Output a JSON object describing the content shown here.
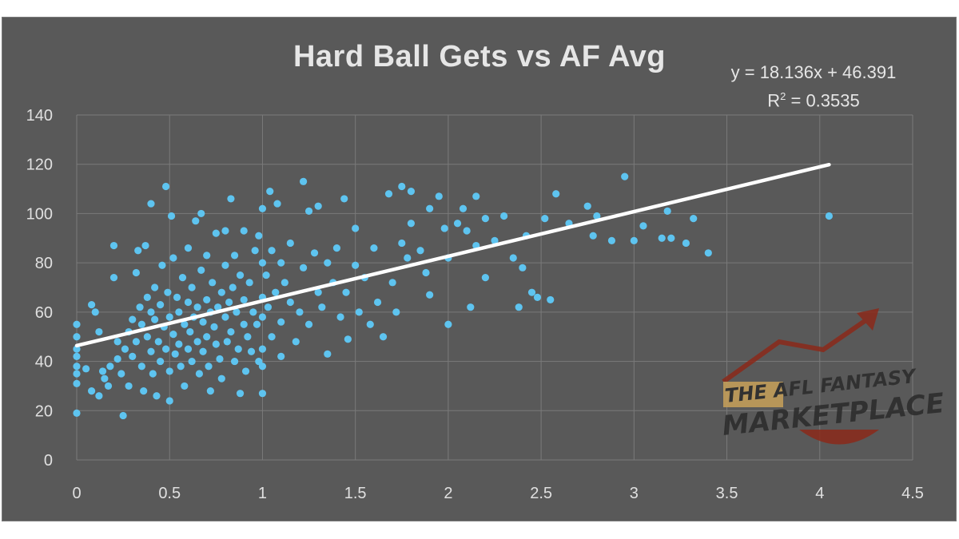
{
  "chart_data": {
    "type": "scatter",
    "title": "Hard Ball Gets vs AF Avg",
    "xlabel": "",
    "ylabel": "",
    "xlim": [
      0,
      4.5
    ],
    "ylim": [
      0,
      140
    ],
    "x_ticks": [
      "0",
      "0.5",
      "1",
      "1.5",
      "2",
      "2.5",
      "3",
      "3.5",
      "4",
      "4.5"
    ],
    "y_ticks": [
      "0",
      "20",
      "40",
      "60",
      "80",
      "100",
      "120",
      "140"
    ],
    "grid": true,
    "point_color": "#5ec4f0",
    "trendline": {
      "equation_label": "y = 18.136x + 46.391",
      "r2_label_prefix": "R",
      "r2_label_exp": "2",
      "r2_label_value": " = 0.3535",
      "slope": 18.136,
      "intercept": 46.391,
      "x_range": [
        0,
        4.05
      ],
      "color": "#ffffff"
    },
    "points": [
      [
        0,
        55
      ],
      [
        0,
        50
      ],
      [
        0,
        45
      ],
      [
        0,
        42
      ],
      [
        0,
        38
      ],
      [
        0,
        35
      ],
      [
        0,
        31
      ],
      [
        0,
        19
      ],
      [
        0.05,
        37
      ],
      [
        0.08,
        63
      ],
      [
        0.08,
        28
      ],
      [
        0.1,
        60
      ],
      [
        0.12,
        52
      ],
      [
        0.12,
        26
      ],
      [
        0.14,
        36
      ],
      [
        0.15,
        33
      ],
      [
        0.17,
        30
      ],
      [
        0.18,
        38
      ],
      [
        0.2,
        87
      ],
      [
        0.2,
        74
      ],
      [
        0.22,
        48
      ],
      [
        0.22,
        41
      ],
      [
        0.24,
        35
      ],
      [
        0.25,
        18
      ],
      [
        0.26,
        45
      ],
      [
        0.28,
        52
      ],
      [
        0.28,
        30
      ],
      [
        0.3,
        57
      ],
      [
        0.3,
        42
      ],
      [
        0.32,
        76
      ],
      [
        0.32,
        48
      ],
      [
        0.33,
        85
      ],
      [
        0.34,
        62
      ],
      [
        0.35,
        55
      ],
      [
        0.35,
        38
      ],
      [
        0.36,
        28
      ],
      [
        0.37,
        87
      ],
      [
        0.38,
        66
      ],
      [
        0.38,
        50
      ],
      [
        0.4,
        104
      ],
      [
        0.4,
        60
      ],
      [
        0.4,
        44
      ],
      [
        0.41,
        35
      ],
      [
        0.42,
        70
      ],
      [
        0.42,
        57
      ],
      [
        0.43,
        26
      ],
      [
        0.44,
        48
      ],
      [
        0.45,
        63
      ],
      [
        0.45,
        40
      ],
      [
        0.46,
        79
      ],
      [
        0.47,
        54
      ],
      [
        0.48,
        111
      ],
      [
        0.48,
        45
      ],
      [
        0.49,
        68
      ],
      [
        0.5,
        58
      ],
      [
        0.5,
        36
      ],
      [
        0.5,
        24
      ],
      [
        0.51,
        99
      ],
      [
        0.52,
        51
      ],
      [
        0.52,
        82
      ],
      [
        0.53,
        43
      ],
      [
        0.54,
        66
      ],
      [
        0.55,
        60
      ],
      [
        0.55,
        47
      ],
      [
        0.56,
        38
      ],
      [
        0.57,
        74
      ],
      [
        0.58,
        55
      ],
      [
        0.58,
        30
      ],
      [
        0.6,
        86
      ],
      [
        0.6,
        64
      ],
      [
        0.6,
        45
      ],
      [
        0.61,
        52
      ],
      [
        0.62,
        70
      ],
      [
        0.62,
        40
      ],
      [
        0.63,
        58
      ],
      [
        0.64,
        97
      ],
      [
        0.65,
        62
      ],
      [
        0.65,
        48
      ],
      [
        0.66,
        35
      ],
      [
        0.67,
        100
      ],
      [
        0.67,
        77
      ],
      [
        0.68,
        56
      ],
      [
        0.68,
        44
      ],
      [
        0.7,
        83
      ],
      [
        0.7,
        65
      ],
      [
        0.7,
        50
      ],
      [
        0.71,
        38
      ],
      [
        0.72,
        60
      ],
      [
        0.72,
        28
      ],
      [
        0.73,
        72
      ],
      [
        0.74,
        54
      ],
      [
        0.75,
        47
      ],
      [
        0.75,
        92
      ],
      [
        0.76,
        62
      ],
      [
        0.77,
        41
      ],
      [
        0.78,
        68
      ],
      [
        0.78,
        33
      ],
      [
        0.8,
        93
      ],
      [
        0.8,
        79
      ],
      [
        0.8,
        58
      ],
      [
        0.81,
        48
      ],
      [
        0.82,
        64
      ],
      [
        0.83,
        106
      ],
      [
        0.83,
        52
      ],
      [
        0.84,
        70
      ],
      [
        0.85,
        40
      ],
      [
        0.85,
        83
      ],
      [
        0.86,
        60
      ],
      [
        0.87,
        45
      ],
      [
        0.88,
        75
      ],
      [
        0.88,
        27
      ],
      [
        0.9,
        93
      ],
      [
        0.9,
        65
      ],
      [
        0.9,
        55
      ],
      [
        0.91,
        36
      ],
      [
        0.92,
        50
      ],
      [
        0.93,
        72
      ],
      [
        0.94,
        44
      ],
      [
        0.95,
        60
      ],
      [
        0.96,
        85
      ],
      [
        0.97,
        55
      ],
      [
        0.98,
        91
      ],
      [
        0.98,
        40
      ],
      [
        1.0,
        102
      ],
      [
        1.0,
        80
      ],
      [
        1.0,
        66
      ],
      [
        1.0,
        58
      ],
      [
        1.0,
        45
      ],
      [
        1.0,
        38
      ],
      [
        1.0,
        27
      ],
      [
        1.02,
        75
      ],
      [
        1.03,
        62
      ],
      [
        1.04,
        109
      ],
      [
        1.05,
        85
      ],
      [
        1.05,
        50
      ],
      [
        1.07,
        68
      ],
      [
        1.08,
        104
      ],
      [
        1.1,
        80
      ],
      [
        1.1,
        56
      ],
      [
        1.1,
        42
      ],
      [
        1.12,
        72
      ],
      [
        1.15,
        64
      ],
      [
        1.15,
        88
      ],
      [
        1.18,
        48
      ],
      [
        1.2,
        60
      ],
      [
        1.22,
        113
      ],
      [
        1.22,
        78
      ],
      [
        1.25,
        101
      ],
      [
        1.25,
        55
      ],
      [
        1.28,
        84
      ],
      [
        1.3,
        68
      ],
      [
        1.3,
        103
      ],
      [
        1.32,
        62
      ],
      [
        1.35,
        43
      ],
      [
        1.35,
        80
      ],
      [
        1.38,
        72
      ],
      [
        1.4,
        86
      ],
      [
        1.42,
        58
      ],
      [
        1.44,
        106
      ],
      [
        1.45,
        68
      ],
      [
        1.46,
        49
      ],
      [
        1.5,
        79
      ],
      [
        1.5,
        94
      ],
      [
        1.52,
        60
      ],
      [
        1.55,
        74
      ],
      [
        1.58,
        55
      ],
      [
        1.6,
        86
      ],
      [
        1.62,
        64
      ],
      [
        1.65,
        50
      ],
      [
        1.68,
        108
      ],
      [
        1.7,
        72
      ],
      [
        1.72,
        60
      ],
      [
        1.75,
        111
      ],
      [
        1.75,
        88
      ],
      [
        1.78,
        82
      ],
      [
        1.8,
        109
      ],
      [
        1.8,
        96
      ],
      [
        1.85,
        85
      ],
      [
        1.88,
        76
      ],
      [
        1.9,
        102
      ],
      [
        1.9,
        67
      ],
      [
        1.95,
        107
      ],
      [
        1.98,
        94
      ],
      [
        2.0,
        55
      ],
      [
        2.0,
        82
      ],
      [
        2.05,
        96
      ],
      [
        2.08,
        102
      ],
      [
        2.1,
        93
      ],
      [
        2.12,
        62
      ],
      [
        2.15,
        107
      ],
      [
        2.15,
        87
      ],
      [
        2.2,
        98
      ],
      [
        2.2,
        74
      ],
      [
        2.25,
        89
      ],
      [
        2.3,
        99
      ],
      [
        2.35,
        82
      ],
      [
        2.38,
        62
      ],
      [
        2.4,
        78
      ],
      [
        2.42,
        91
      ],
      [
        2.45,
        68
      ],
      [
        2.48,
        66
      ],
      [
        2.52,
        98
      ],
      [
        2.55,
        65
      ],
      [
        2.58,
        108
      ],
      [
        2.65,
        96
      ],
      [
        2.75,
        103
      ],
      [
        2.78,
        91
      ],
      [
        2.8,
        99
      ],
      [
        2.88,
        89
      ],
      [
        2.95,
        115
      ],
      [
        3.0,
        89
      ],
      [
        3.05,
        95
      ],
      [
        3.15,
        90
      ],
      [
        3.18,
        101
      ],
      [
        3.2,
        90
      ],
      [
        3.28,
        88
      ],
      [
        3.32,
        98
      ],
      [
        3.4,
        84
      ],
      [
        4.05,
        99
      ]
    ]
  },
  "logo": {
    "line1": "THE AFL FANTASY",
    "line2": "MARKETPLACE"
  }
}
